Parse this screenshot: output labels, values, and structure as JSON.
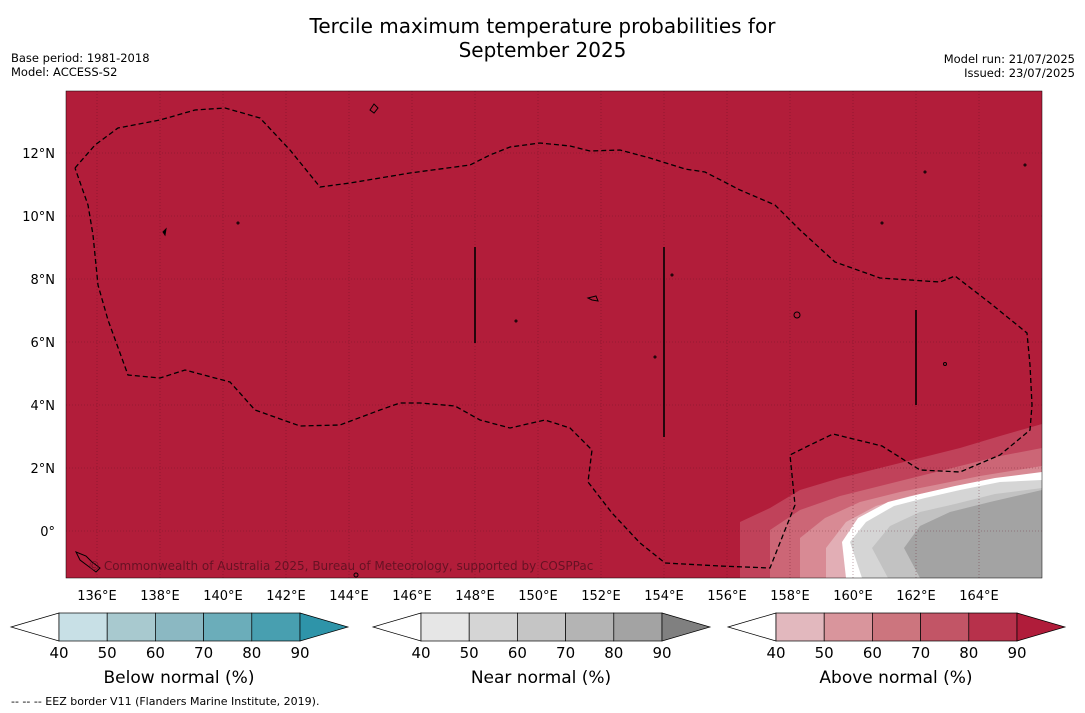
{
  "title_line1": "Tercile maximum temperature probabilities for",
  "title_line2": "September 2025",
  "meta_left": [
    "Base period: 1981-2018",
    "Model: ACCESS-S2"
  ],
  "meta_right": [
    "Model run: 21/07/2025",
    "Issued: 23/07/2025"
  ],
  "map": {
    "lon_labels": [
      "136°E",
      "138°E",
      "140°E",
      "142°E",
      "144°E",
      "146°E",
      "148°E",
      "150°E",
      "152°E",
      "154°E",
      "156°E",
      "158°E",
      "160°E",
      "162°E",
      "164°E"
    ],
    "lat_labels": [
      "12°N",
      "10°N",
      "8°N",
      "6°N",
      "4°N",
      "2°N",
      "0°"
    ],
    "copyright": "© Commonwealth of Australia 2025, Bureau of Meteorology, supported by COSPPac",
    "dominant_category": "Above normal",
    "dominant_level": "90",
    "colors": {
      "above_90": "#b21d3a",
      "eez": "#000000"
    }
  },
  "colorbars": [
    {
      "title": "Below normal (%)",
      "ticks": [
        "40",
        "50",
        "60",
        "70",
        "80",
        "90"
      ],
      "colors": [
        "#ffffff",
        "#c8e0e6",
        "#a8c9cf",
        "#8bb8c2",
        "#6badba",
        "#489fb0",
        "#2e94a9"
      ]
    },
    {
      "title": "Near normal (%)",
      "ticks": [
        "40",
        "50",
        "60",
        "70",
        "80",
        "90"
      ],
      "colors": [
        "#ffffff",
        "#e6e6e6",
        "#d5d5d5",
        "#c5c5c5",
        "#b4b4b4",
        "#a3a3a3",
        "#808080"
      ]
    },
    {
      "title": "Above normal (%)",
      "ticks": [
        "40",
        "50",
        "60",
        "70",
        "80",
        "90"
      ],
      "colors": [
        "#ffffff",
        "#e2b8be",
        "#d9959c",
        "#cc757e",
        "#c25566",
        "#b7314b",
        "#b01c3a"
      ]
    }
  ],
  "footnote": "--  --  -- EEZ border V11 (Flanders Marine Institute, 2019)."
}
